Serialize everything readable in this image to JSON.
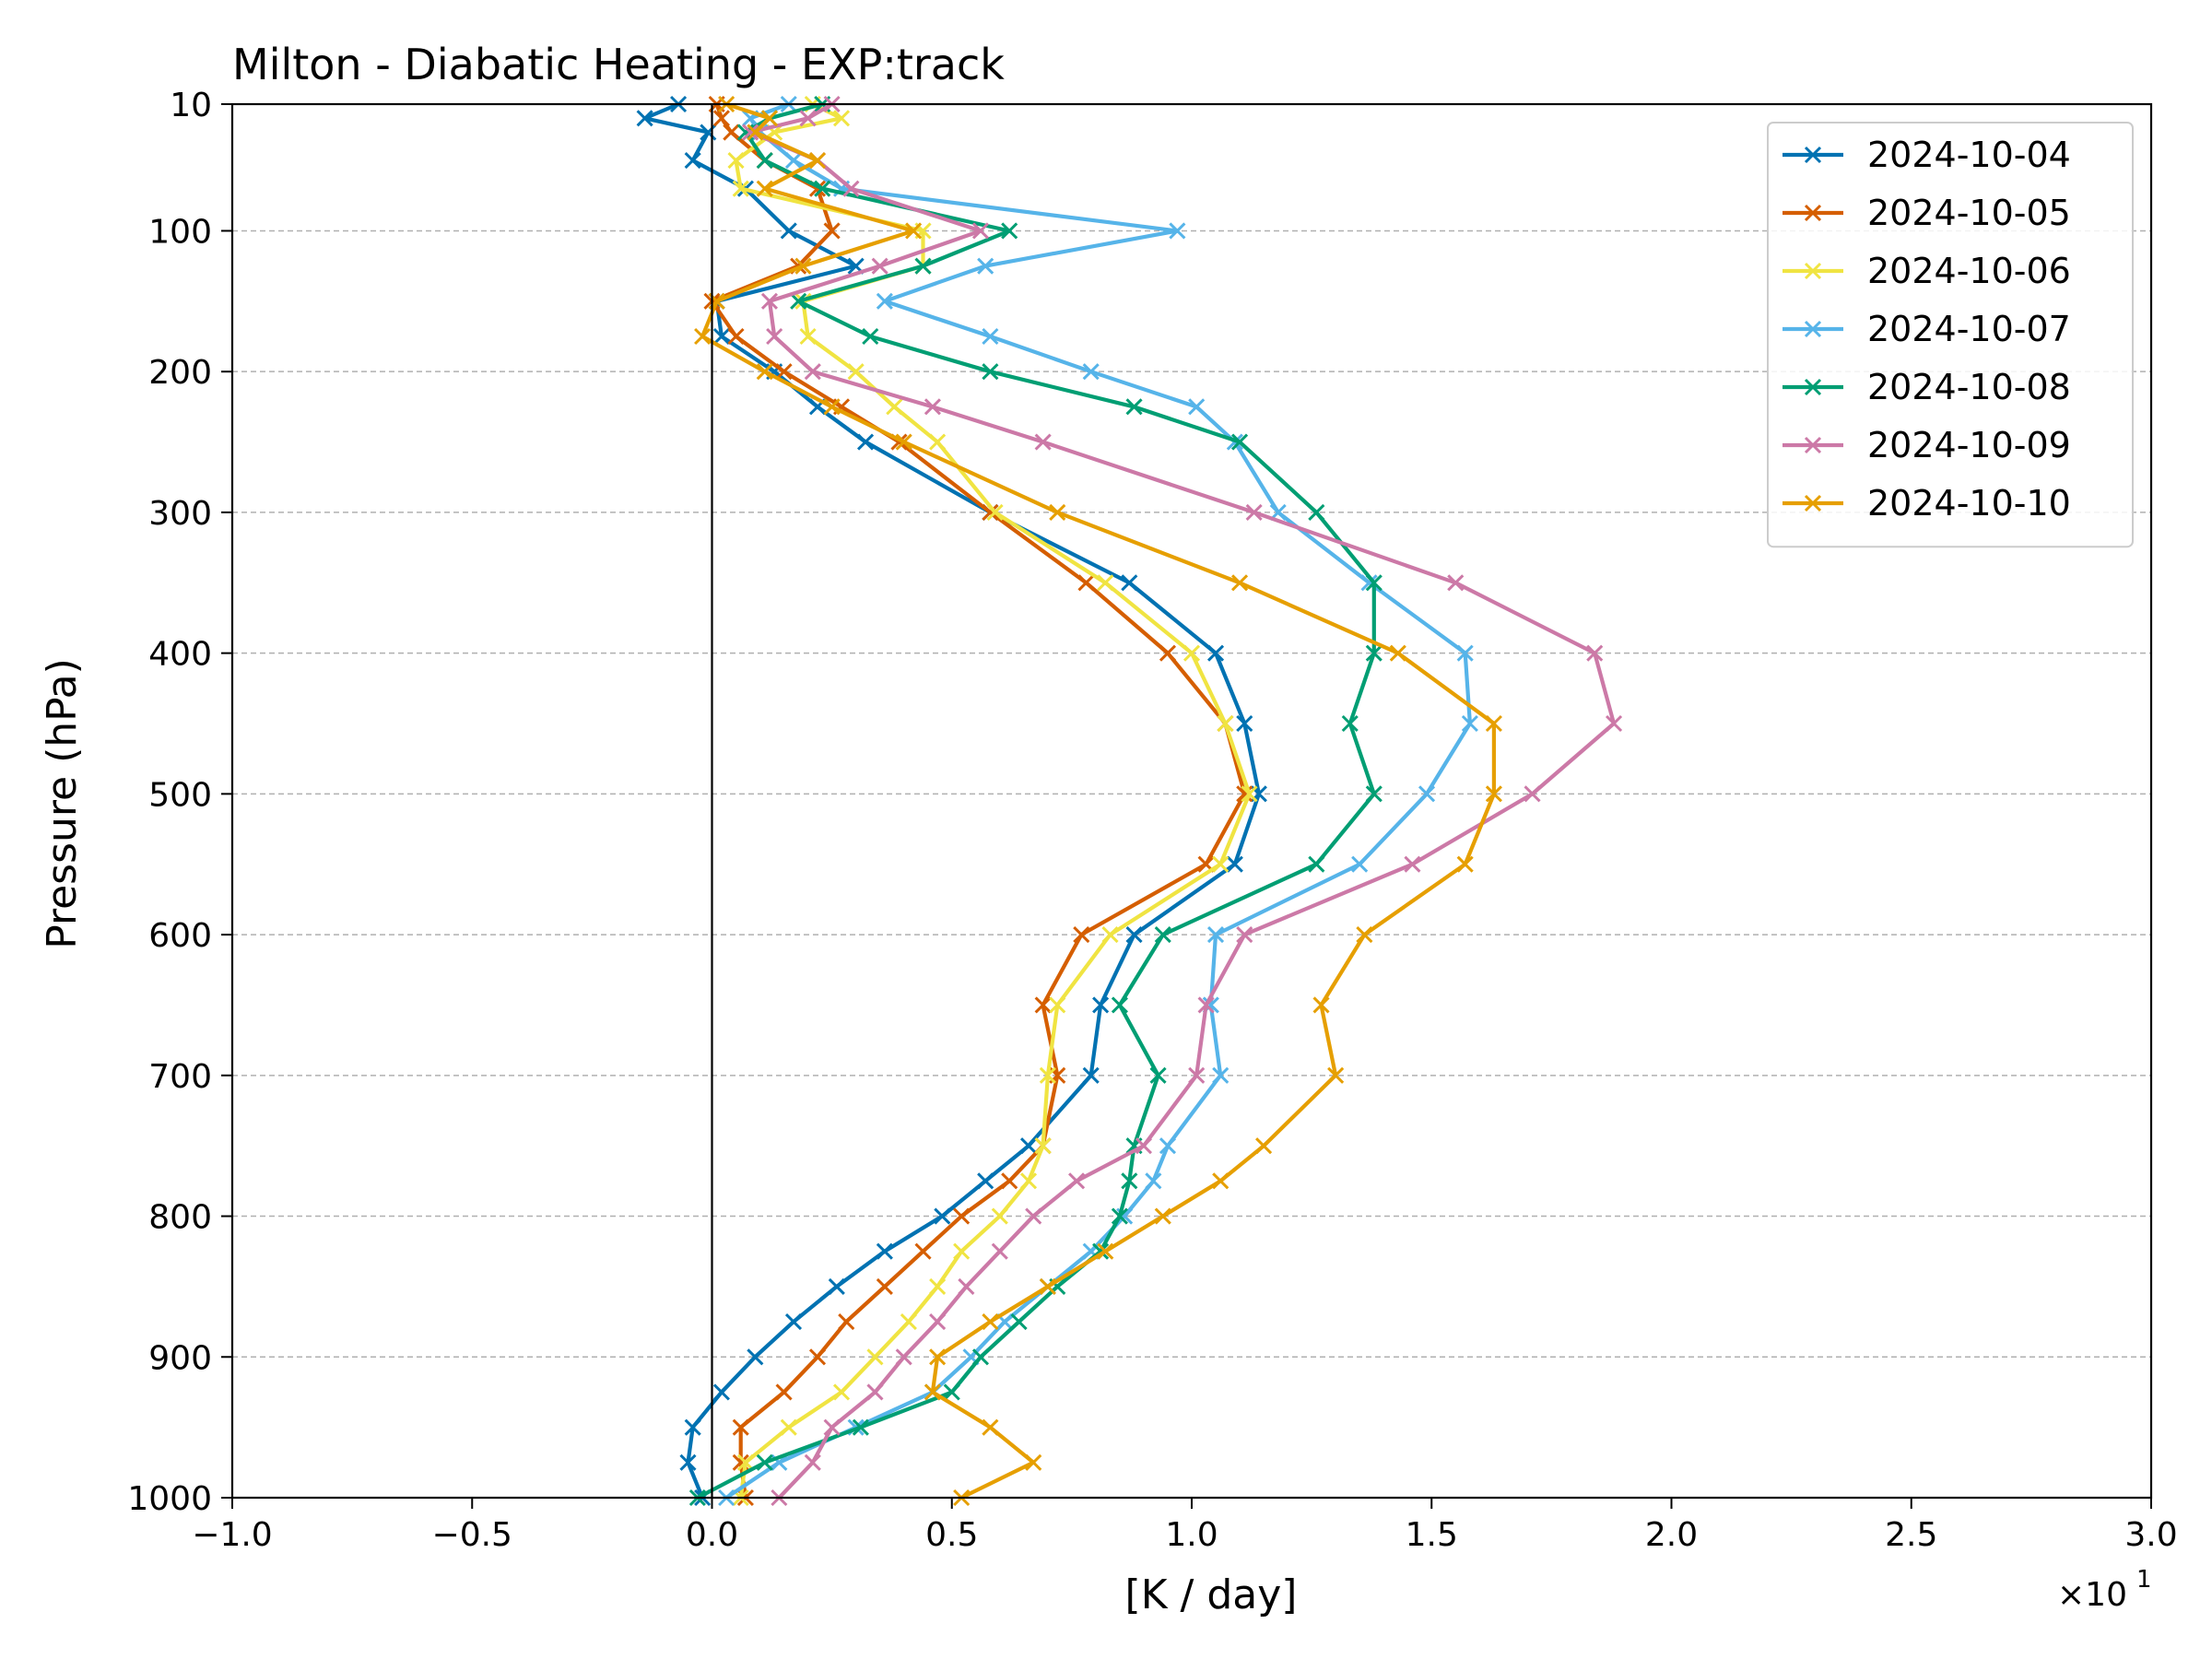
{
  "chart_data": {
    "type": "line",
    "title": "Milton - Diabatic Heating - EXP:track",
    "xlabel": "[K / day]",
    "ylabel": "Pressure (hPa)",
    "x_offset_label": "×10",
    "x_offset_exponent": "1",
    "xlim": [
      -1.0,
      3.0
    ],
    "ylim": [
      10,
      1000
    ],
    "y_inverted": true,
    "x_ticks": [
      -1.0,
      -0.5,
      0.0,
      0.5,
      1.0,
      1.5,
      2.0,
      2.5,
      3.0
    ],
    "x_tick_labels": [
      "−1.0",
      "−0.5",
      "0.0",
      "0.5",
      "1.0",
      "1.5",
      "2.0",
      "2.5",
      "3.0"
    ],
    "y_ticks": [
      10,
      100,
      200,
      300,
      400,
      500,
      600,
      700,
      800,
      900,
      1000
    ],
    "y_tick_labels": [
      "10",
      "100",
      "200",
      "300",
      "400",
      "500",
      "600",
      "700",
      "800",
      "900",
      "1000"
    ],
    "grid": "horizontal dashed",
    "vline_at": 0,
    "legend_loc": "upper right",
    "marker": "x",
    "pressure_levels": [
      10,
      20,
      30,
      50,
      70,
      100,
      125,
      150,
      175,
      200,
      225,
      250,
      300,
      350,
      400,
      450,
      500,
      550,
      600,
      650,
      700,
      750,
      775,
      800,
      825,
      850,
      875,
      900,
      925,
      950,
      975,
      1000
    ],
    "series": [
      {
        "name": "2024-10-04",
        "color": "#0072B2",
        "values": [
          -0.007,
          -0.014,
          -0.0008,
          -0.004,
          0.007,
          0.016,
          0.03,
          0.001,
          0.002,
          0.013,
          0.022,
          0.032,
          0.058,
          0.087,
          0.105,
          0.111,
          0.114,
          0.109,
          0.088,
          0.081,
          0.079,
          0.066,
          0.057,
          0.048,
          0.036,
          0.026,
          0.017,
          0.009,
          0.002,
          -0.004,
          -0.005,
          -0.002
        ]
      },
      {
        "name": "2024-10-05",
        "color": "#D55E00",
        "values": [
          0.001,
          0.002,
          0.004,
          0.011,
          0.022,
          0.025,
          0.018,
          0.0,
          0.005,
          0.015,
          0.027,
          0.039,
          0.058,
          0.078,
          0.095,
          0.107,
          0.111,
          0.103,
          0.077,
          0.069,
          0.072,
          0.069,
          0.062,
          0.052,
          0.044,
          0.036,
          0.028,
          0.022,
          0.015,
          0.006,
          0.006,
          0.007
        ]
      },
      {
        "name": "2024-10-06",
        "color": "#F0E442",
        "values": [
          0.021,
          0.027,
          0.013,
          0.005,
          0.006,
          0.044,
          0.044,
          0.019,
          0.02,
          0.03,
          0.038,
          0.047,
          0.059,
          0.082,
          0.1,
          0.107,
          0.112,
          0.106,
          0.083,
          0.072,
          0.07,
          0.069,
          0.066,
          0.06,
          0.052,
          0.047,
          0.041,
          0.034,
          0.027,
          0.016,
          0.007,
          0.006
        ]
      },
      {
        "name": "2024-10-07",
        "color": "#56B4E9",
        "values": [
          0.016,
          0.008,
          0.01,
          0.017,
          0.027,
          0.097,
          0.057,
          0.036,
          0.058,
          0.079,
          0.101,
          0.109,
          0.118,
          0.137,
          0.157,
          0.158,
          0.149,
          0.135,
          0.105,
          0.104,
          0.106,
          0.095,
          0.092,
          0.086,
          0.079,
          0.07,
          0.061,
          0.054,
          0.046,
          0.03,
          0.014,
          0.003
        ]
      },
      {
        "name": "2024-10-08",
        "color": "#009E73",
        "values": [
          0.023,
          0.012,
          0.007,
          0.011,
          0.023,
          0.062,
          0.044,
          0.018,
          0.033,
          0.058,
          0.088,
          0.11,
          0.126,
          0.138,
          0.138,
          0.133,
          0.138,
          0.126,
          0.094,
          0.085,
          0.093,
          0.088,
          0.087,
          0.085,
          0.081,
          0.072,
          0.064,
          0.056,
          0.05,
          0.031,
          0.011,
          -0.003
        ]
      },
      {
        "name": "2024-10-09",
        "color": "#CC79A7",
        "values": [
          0.025,
          0.02,
          0.008,
          0.022,
          0.029,
          0.056,
          0.035,
          0.012,
          0.013,
          0.021,
          0.046,
          0.069,
          0.113,
          0.155,
          0.184,
          0.188,
          0.171,
          0.146,
          0.111,
          0.103,
          0.101,
          0.09,
          0.076,
          0.067,
          0.06,
          0.053,
          0.047,
          0.04,
          0.034,
          0.025,
          0.021,
          0.014
        ]
      },
      {
        "name": "2024-10-10",
        "color": "#E69F00",
        "values": [
          0.003,
          0.012,
          0.009,
          0.022,
          0.011,
          0.042,
          0.019,
          0.001,
          -0.002,
          0.011,
          0.025,
          0.04,
          0.072,
          0.11,
          0.143,
          0.163,
          0.163,
          0.157,
          0.136,
          0.127,
          0.13,
          0.115,
          0.106,
          0.094,
          0.082,
          0.07,
          0.058,
          0.047,
          0.046,
          0.058,
          0.067,
          0.052
        ]
      }
    ]
  }
}
